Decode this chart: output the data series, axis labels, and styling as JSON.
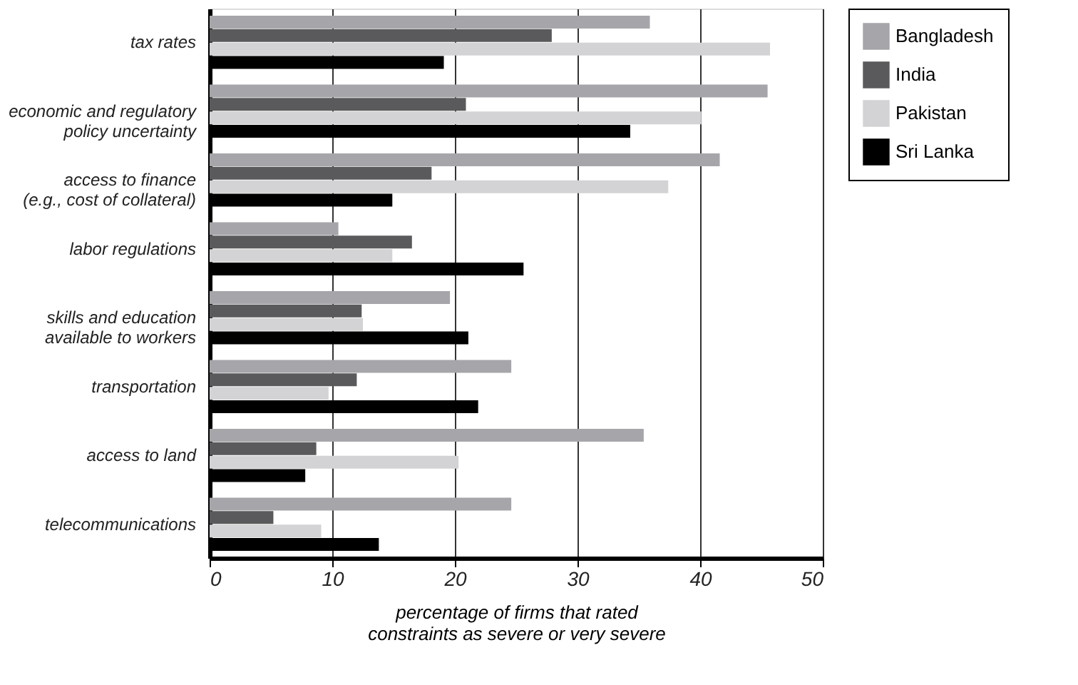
{
  "chart_data": {
    "type": "bar",
    "orientation": "horizontal",
    "xlabel": "percentage of firms that rated\nconstraints as severe or very severe",
    "categories": [
      "tax rates",
      "economic and regulatory\npolicy uncertainty",
      "access to finance\n(e.g., cost of collateral)",
      "labor regulations",
      "skills and education\navailable to workers",
      "transportation",
      "access to land",
      "telecommunications"
    ],
    "series": [
      {
        "name": "Bangladesh",
        "color": "#a6a6aa",
        "values": [
          35.9,
          45.5,
          41.6,
          10.5,
          19.6,
          24.6,
          35.4,
          24.6
        ]
      },
      {
        "name": "India",
        "color": "#5a5a5c",
        "values": [
          27.9,
          20.9,
          18.1,
          16.5,
          12.4,
          12,
          8.7,
          5.2
        ]
      },
      {
        "name": "Pakistan",
        "color": "#d3d3d5",
        "values": [
          45.7,
          40.1,
          37.4,
          14.9,
          12.5,
          9.7,
          20.3,
          9.1
        ]
      },
      {
        "name": "Sri Lanka",
        "color": "#000000",
        "values": [
          19.1,
          34.3,
          14.9,
          25.6,
          21.1,
          21.9,
          7.8,
          13.8
        ]
      }
    ],
    "xlim": [
      0,
      50
    ],
    "xticks": [
      0,
      10,
      20,
      30,
      40,
      50
    ],
    "grid": "x",
    "legend": "top right"
  }
}
